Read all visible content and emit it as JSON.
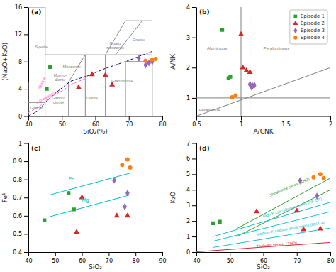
{
  "chart_data": [
    {
      "type": "scatter",
      "title": "(a)",
      "xlabel": "SiO₂(%)",
      "ylabel": "(Na₂O+K₂O)",
      "xlim": [
        40,
        80
      ],
      "ylim": [
        0,
        16
      ],
      "xticks": [
        40,
        50,
        60,
        70,
        80
      ],
      "yticks": [
        0,
        4,
        8,
        12,
        16
      ],
      "series": [
        {
          "color": "#2ca02c",
          "marker": "square",
          "x": [
            45.5,
            46.5
          ],
          "values": [
            4.0,
            7.2
          ]
        },
        {
          "color": "#d62728",
          "marker": "triangle",
          "x": [
            55,
            59,
            63,
            65
          ],
          "values": [
            4.2,
            6.1,
            6.0,
            4.6
          ]
        },
        {
          "color": "#9467bd",
          "marker": "diamond",
          "x": [
            73,
            75,
            76,
            77
          ],
          "values": [
            8.5,
            7.5,
            7.8,
            8.0
          ]
        },
        {
          "color": "#ff7f0e",
          "marker": "circle",
          "x": [
            75,
            77,
            78
          ],
          "values": [
            8.1,
            8.3,
            8.4
          ]
        },
        {
          "type": "line",
          "color": "#888888",
          "line_style": "solid",
          "x": [
            40,
            45
          ],
          "values": [
            2,
            2
          ]
        },
        {
          "type": "line",
          "color": "#888888",
          "line_style": "solid",
          "x": [
            40,
            45
          ],
          "values": [
            5,
            5
          ]
        },
        {
          "type": "line",
          "color": "#888888",
          "line_style": "solid",
          "x": [
            40,
            40
          ],
          "values": [
            0,
            5
          ]
        },
        {
          "type": "line",
          "color": "#888888",
          "line_style": "solid",
          "x": [
            45,
            45
          ],
          "values": [
            0,
            16
          ]
        },
        {
          "type": "line",
          "color": "#888888",
          "line_style": "solid",
          "x": [
            52,
            52
          ],
          "values": [
            0,
            5
          ]
        },
        {
          "type": "line",
          "color": "#888888",
          "line_style": "solid",
          "x": [
            57,
            57
          ],
          "values": [
            0,
            9
          ]
        },
        {
          "type": "line",
          "color": "#888888",
          "line_style": "solid",
          "x": [
            63,
            63
          ],
          "values": [
            0,
            9
          ]
        },
        {
          "type": "line",
          "color": "#888888",
          "line_style": "solid",
          "x": [
            69,
            69
          ],
          "values": [
            0,
            8
          ]
        },
        {
          "type": "line",
          "color": "#888888",
          "line_style": "solid",
          "x": [
            77,
            77
          ],
          "values": [
            0,
            8
          ]
        },
        {
          "type": "line",
          "color": "#888888",
          "line_style": "solid",
          "x": [
            45,
            52
          ],
          "values": [
            5,
            5
          ]
        },
        {
          "type": "line",
          "color": "#888888",
          "line_style": "solid",
          "x": [
            52,
            57
          ],
          "values": [
            5,
            5
          ]
        },
        {
          "type": "line",
          "color": "#888888",
          "line_style": "solid",
          "x": [
            57,
            63
          ],
          "values": [
            9,
            9
          ]
        },
        {
          "type": "line",
          "color": "#888888",
          "line_style": "solid",
          "x": [
            45,
            57
          ],
          "values": [
            9,
            9
          ]
        },
        {
          "type": "line",
          "color": "#888888",
          "line_style": "solid",
          "x": [
            52,
            57
          ],
          "values": [
            5,
            9
          ]
        },
        {
          "type": "line",
          "color": "#888888",
          "line_style": "solid",
          "x": [
            63,
            69
          ],
          "values": [
            9,
            14
          ]
        },
        {
          "type": "line",
          "color": "#888888",
          "line_style": "solid",
          "x": [
            69,
            77
          ],
          "values": [
            14,
            14
          ]
        },
        {
          "type": "line",
          "color": "#888888",
          "line_style": "solid",
          "x": [
            69,
            77
          ],
          "values": [
            8,
            8
          ]
        },
        {
          "type": "line",
          "color": "#888888",
          "line_style": "solid",
          "x": [
            63,
            77
          ],
          "values": [
            9,
            9
          ]
        },
        {
          "type": "line",
          "color": "#888888",
          "line_style": "solid",
          "x": [
            66,
            74
          ],
          "values": [
            9,
            14
          ]
        },
        {
          "type": "line",
          "color": "#888888",
          "line_style": "solid",
          "x": [
            40,
            45
          ],
          "values": [
            16,
            16
          ]
        },
        {
          "type": "line",
          "color": "#888888",
          "line_style": "solid",
          "x": [
            45,
            45
          ],
          "values": [
            9,
            16
          ]
        },
        {
          "type": "line",
          "color": "navy",
          "line_style": "dashed",
          "x": [
            40,
            43,
            45,
            48.4,
            52.5,
            57.6,
            63,
            69,
            77
          ],
          "values": [
            0,
            0.8,
            2.0,
            3.5,
            5.1,
            5.9,
            7.0,
            8.0,
            9.5
          ]
        },
        {
          "type": "line",
          "color": "hotpink",
          "line_style": "dashed",
          "x": [
            40,
            43.5,
            45,
            47,
            50,
            53,
            57
          ],
          "values": [
            0.5,
            1.5,
            2.2,
            2.9,
            3.7,
            4.7,
            5.5
          ]
        }
      ],
      "annotations": [
        {
          "text": "Syenite",
          "x": 42,
          "y": 10,
          "color": "gray"
        },
        {
          "text": "Granite",
          "x": 73,
          "y": 11,
          "color": "gray"
        },
        {
          "text": [
            "Quartz",
            "monzonite"
          ],
          "x": 66,
          "y": 10.5,
          "color": "gray"
        },
        {
          "text": "Monzonite",
          "x": 53,
          "y": 7.0,
          "color": "gray"
        },
        {
          "text": [
            "Monzo-",
            "diorite"
          ],
          "x": 49.5,
          "y": 5.8,
          "color": "gray"
        },
        {
          "text": "Gabbro",
          "x": 42.5,
          "y": 1.0,
          "color": "gray"
        },
        {
          "text": [
            "Gabbro",
            "diorite"
          ],
          "x": 49,
          "y": 2.5,
          "color": "gray"
        },
        {
          "text": "Diorite",
          "x": 59,
          "y": 2.5,
          "color": "gray"
        },
        {
          "text": "Granodiorite",
          "x": 68,
          "y": 5.0,
          "color": "gray"
        },
        {
          "text": "Alkaline",
          "x": 43.5,
          "y": 3.8,
          "color": "hotpink"
        },
        {
          "text": "sub-alkaline",
          "x": 42.5,
          "y": 1.8,
          "color": "hotpink"
        }
      ]
    },
    {
      "type": "scatter",
      "title": "(b)",
      "xlabel": "A/CNK",
      "ylabel": "A/NK",
      "xlim": [
        0.5,
        2.0
      ],
      "ylim": [
        0.4,
        4.0
      ],
      "xticks": [
        0.5,
        1,
        1.5,
        2
      ],
      "yticks": [
        1,
        2,
        3,
        4
      ],
      "legend": "upper right",
      "series": [
        {
          "name": "Episode 1",
          "color": "#2ca02c",
          "marker": "square",
          "x": [
            0.79,
            0.86,
            0.88
          ],
          "values": [
            3.25,
            1.65,
            1.7
          ]
        },
        {
          "name": "Episode 2",
          "color": "#d62728",
          "marker": "triangle",
          "x": [
            1.0,
            1.02,
            1.06,
            1.1
          ],
          "values": [
            3.1,
            2.0,
            1.9,
            1.85
          ]
        },
        {
          "name": "Episode 3",
          "color": "#9467bd",
          "marker": "diamond",
          "x": [
            1.1,
            1.12,
            1.13,
            1.15
          ],
          "values": [
            1.45,
            1.35,
            1.4,
            1.42
          ]
        },
        {
          "name": "Episode 4",
          "color": "#ff7f0e",
          "marker": "circle",
          "x": [
            0.9,
            0.94
          ],
          "values": [
            1.02,
            1.08
          ]
        },
        {
          "type": "line",
          "color": "gray",
          "line_style": "solid",
          "x": [
            0.5,
            2.0
          ],
          "values": [
            1.0,
            1.0
          ]
        },
        {
          "type": "line",
          "color": "gray",
          "line_style": "solid",
          "x": [
            1.0,
            1.0
          ],
          "values": [
            0.4,
            4.0
          ]
        },
        {
          "type": "line",
          "color": "gray",
          "line_style": "dotted",
          "x": [
            1.1,
            1.1
          ],
          "values": [
            0.4,
            4.0
          ]
        },
        {
          "type": "line",
          "color": "gray",
          "line_style": "solid",
          "x": [
            0.5,
            2.0
          ],
          "values": [
            0.4005,
            2.001
          ]
        }
      ],
      "annotations": [
        {
          "text": "Aluminous",
          "x": 0.62,
          "y": 2.6,
          "color": "gray"
        },
        {
          "text": "Peraluminous",
          "x": 1.25,
          "y": 2.6,
          "color": "gray"
        },
        {
          "text": "Peralkaline",
          "x": 0.53,
          "y": 0.55,
          "color": "gray"
        }
      ]
    },
    {
      "type": "scatter",
      "title": "(c)",
      "xlabel": "SiO₂",
      "ylabel": "Fe¹",
      "xlim": [
        40,
        90
      ],
      "ylim": [
        0.4,
        1.0
      ],
      "xticks": [
        40,
        50,
        60,
        70,
        80,
        90
      ],
      "yticks": [
        0.4,
        0.5,
        0.6,
        0.7,
        0.8,
        0.9,
        1
      ],
      "series": [
        {
          "color": "#2ca02c",
          "marker": "square",
          "x": [
            46,
            55,
            57
          ],
          "values": [
            0.575,
            0.725,
            0.635
          ]
        },
        {
          "color": "#d62728",
          "marker": "triangle",
          "x": [
            58,
            60,
            73,
            77
          ],
          "values": [
            0.51,
            0.7,
            0.6,
            0.6
          ]
        },
        {
          "color": "#9467bd",
          "marker": "diamond",
          "x": [
            72,
            76,
            77
          ],
          "values": [
            0.795,
            0.65,
            0.725
          ]
        },
        {
          "color": "#ff7f0e",
          "marker": "circle",
          "x": [
            75,
            77,
            78
          ],
          "values": [
            0.88,
            0.91,
            0.865
          ]
        },
        {
          "type": "line",
          "color": "#00BFBF",
          "line_style": "solid",
          "x": [
            48,
            78
          ],
          "values": [
            0.715,
            0.835
          ]
        },
        {
          "type": "line",
          "color": "#00BFBF",
          "line_style": "solid",
          "x": [
            48,
            78
          ],
          "values": [
            0.595,
            0.715
          ]
        }
      ],
      "annotations": [
        {
          "text": "Fe",
          "x": 55,
          "y": 0.795,
          "color": "#00BFBF"
        },
        {
          "text": "Mg",
          "x": 60,
          "y": 0.678,
          "color": "#00BFBF"
        }
      ]
    },
    {
      "type": "scatter",
      "title": "(d)",
      "xlabel": "SiO₂",
      "ylabel": "K₂O",
      "xlim": [
        40,
        80
      ],
      "ylim": [
        0,
        7
      ],
      "xticks": [
        40,
        50,
        60,
        70,
        80
      ],
      "yticks": [
        0,
        1,
        2,
        3,
        4,
        5,
        6,
        7
      ],
      "series": [
        {
          "color": "#2ca02c",
          "marker": "square",
          "x": [
            45,
            47
          ],
          "values": [
            1.85,
            1.95
          ]
        },
        {
          "color": "#d62728",
          "marker": "triangle",
          "x": [
            58,
            70,
            72,
            77
          ],
          "values": [
            2.6,
            2.65,
            1.45,
            1.5
          ]
        },
        {
          "color": "#9467bd",
          "marker": "diamond",
          "x": [
            71,
            76
          ],
          "values": [
            4.6,
            3.6
          ]
        },
        {
          "color": "#ff7f0e",
          "marker": "circle",
          "x": [
            75,
            77,
            78
          ],
          "values": [
            4.8,
            5.0,
            4.75
          ]
        },
        {
          "type": "line",
          "color": "#2ca02c",
          "line_style": "solid",
          "x": [
            52,
            80
          ],
          "values": [
            1.5,
            4.75
          ]
        },
        {
          "type": "line",
          "color": "#2ca02c",
          "line_style": "solid",
          "x": [
            52,
            80
          ],
          "values": [
            1.0,
            4.0
          ]
        },
        {
          "type": "line",
          "color": "#17becf",
          "line_style": "solid",
          "x": [
            45,
            80
          ],
          "values": [
            1.0,
            3.2
          ]
        },
        {
          "type": "line",
          "color": "#17becf",
          "line_style": "solid",
          "x": [
            45,
            80
          ],
          "values": [
            0.7,
            2.6
          ]
        },
        {
          "type": "line",
          "color": "#17becf",
          "line_style": "solid",
          "x": [
            45,
            80
          ],
          "values": [
            0.3,
            1.55
          ]
        },
        {
          "type": "line",
          "color": "#d62728",
          "line_style": "solid",
          "x": [
            40,
            80
          ],
          "values": [
            0.02,
            0.62
          ]
        }
      ],
      "annotations": [
        {
          "text": "Shoshonite series (SHO)",
          "x": 62,
          "y": 3.55,
          "color": "#2ca02c"
        },
        {
          "text": "High K calc-alkaline series (HK CA)",
          "x": 60,
          "y": 2.2,
          "color": "#17becf"
        },
        {
          "text": "Medium K calcium-alkali series (MK CA)",
          "x": 58,
          "y": 1.05,
          "color": "#17becf"
        },
        {
          "text": "Tholeiitic series（THO）",
          "x": 58,
          "y": 0.28,
          "color": "#d62728"
        }
      ]
    }
  ]
}
